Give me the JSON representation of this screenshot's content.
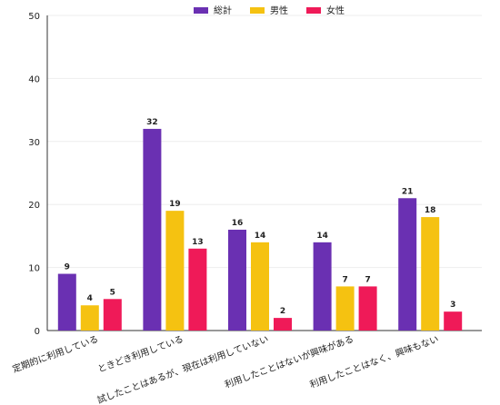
{
  "chart_data": {
    "type": "bar",
    "categories": [
      "定期的に利用している",
      "ときどき利用している",
      "試したことはあるが、現在は利用していない",
      "利用したことはないが興味がある",
      "利用したことはなく、興味もない"
    ],
    "series": [
      {
        "name": "総計",
        "color": "#6a30b2",
        "values": [
          9,
          32,
          16,
          14,
          21
        ]
      },
      {
        "name": "男性",
        "color": "#f5c211",
        "values": [
          4,
          19,
          14,
          7,
          18
        ]
      },
      {
        "name": "女性",
        "color": "#ef1a58",
        "values": [
          5,
          13,
          2,
          7,
          3
        ]
      }
    ],
    "ylim": [
      0,
      50
    ],
    "yticks": [
      0,
      10,
      20,
      30,
      40,
      50
    ],
    "grid": true,
    "legend": "top"
  }
}
